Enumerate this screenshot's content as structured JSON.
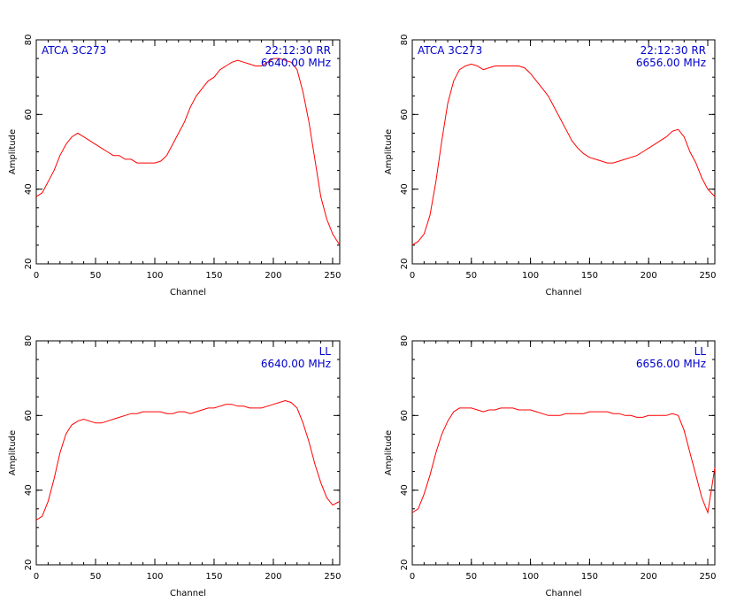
{
  "chart_data": [
    {
      "type": "line",
      "xlabel": "Channel",
      "ylabel": "Amplitude",
      "xlim": [
        0,
        256
      ],
      "ylim": [
        20,
        80
      ],
      "xticks": [
        0,
        50,
        100,
        150,
        200,
        250
      ],
      "yticks": [
        20,
        40,
        60,
        80
      ],
      "annotations": {
        "left": "ATCA 3C273",
        "right_line1": "22:12:30  RR",
        "right_line2": "6640.00  MHz"
      },
      "series": [
        {
          "color": "#ff0000",
          "x": [
            0,
            5,
            10,
            15,
            20,
            25,
            30,
            35,
            40,
            45,
            50,
            55,
            60,
            65,
            70,
            75,
            80,
            85,
            90,
            95,
            100,
            105,
            110,
            115,
            120,
            125,
            130,
            135,
            140,
            145,
            150,
            155,
            160,
            165,
            170,
            175,
            180,
            185,
            190,
            195,
            200,
            205,
            210,
            215,
            220,
            225,
            230,
            235,
            240,
            245,
            250,
            256
          ],
          "y": [
            38,
            39,
            42,
            45,
            49,
            52,
            54,
            55,
            54,
            53,
            52,
            51,
            50,
            49,
            49,
            48,
            48,
            47,
            47,
            47,
            47,
            47.5,
            49,
            52,
            55,
            58,
            62,
            65,
            67,
            69,
            70,
            72,
            73,
            74,
            74.5,
            74,
            73.5,
            73,
            73,
            74,
            75,
            75,
            74.5,
            74,
            72,
            66,
            58,
            48,
            38,
            32,
            28,
            25
          ]
        }
      ]
    },
    {
      "type": "line",
      "xlabel": "Channel",
      "ylabel": "Amplitude",
      "xlim": [
        0,
        256
      ],
      "ylim": [
        20,
        80
      ],
      "xticks": [
        0,
        50,
        100,
        150,
        200,
        250
      ],
      "yticks": [
        20,
        40,
        60,
        80
      ],
      "annotations": {
        "left": "ATCA 3C273",
        "right_line1": "22:12:30  RR",
        "right_line2": "6656.00  MHz"
      },
      "series": [
        {
          "color": "#ff0000",
          "x": [
            0,
            5,
            10,
            15,
            20,
            25,
            30,
            35,
            40,
            45,
            50,
            55,
            60,
            65,
            70,
            75,
            80,
            85,
            90,
            95,
            100,
            105,
            110,
            115,
            120,
            125,
            130,
            135,
            140,
            145,
            150,
            155,
            160,
            165,
            170,
            175,
            180,
            185,
            190,
            195,
            200,
            205,
            210,
            215,
            220,
            225,
            230,
            235,
            240,
            245,
            250,
            256
          ],
          "y": [
            25,
            26,
            28,
            33,
            42,
            53,
            63,
            69,
            72,
            73,
            73.5,
            73,
            72,
            72.5,
            73,
            73,
            73,
            73,
            73,
            72.5,
            71,
            69,
            67,
            65,
            62,
            59,
            56,
            53,
            51,
            49.5,
            48.5,
            48,
            47.5,
            47,
            47,
            47.5,
            48,
            48.5,
            49,
            50,
            51,
            52,
            53,
            54,
            55.5,
            56,
            54,
            50,
            47,
            43,
            40,
            38
          ]
        }
      ]
    },
    {
      "type": "line",
      "xlabel": "Channel",
      "ylabel": "Amplitude",
      "xlim": [
        0,
        256
      ],
      "ylim": [
        20,
        80
      ],
      "xticks": [
        0,
        50,
        100,
        150,
        200,
        250
      ],
      "yticks": [
        20,
        40,
        60,
        80
      ],
      "annotations": {
        "left": "",
        "right_line1": "LL",
        "right_line2": "6640.00  MHz"
      },
      "series": [
        {
          "color": "#ff0000",
          "x": [
            0,
            5,
            10,
            15,
            20,
            25,
            30,
            35,
            40,
            45,
            50,
            55,
            60,
            65,
            70,
            75,
            80,
            85,
            90,
            95,
            100,
            105,
            110,
            115,
            120,
            125,
            130,
            135,
            140,
            145,
            150,
            155,
            160,
            165,
            170,
            175,
            180,
            185,
            190,
            195,
            200,
            205,
            210,
            215,
            220,
            225,
            230,
            235,
            240,
            245,
            250,
            256
          ],
          "y": [
            32,
            33,
            37,
            43,
            50,
            55,
            57.5,
            58.5,
            59,
            58.5,
            58,
            58,
            58.5,
            59,
            59.5,
            60,
            60.5,
            60.5,
            61,
            61,
            61,
            61,
            60.5,
            60.5,
            61,
            61,
            60.5,
            61,
            61.5,
            62,
            62,
            62.5,
            63,
            63,
            62.5,
            62.5,
            62,
            62,
            62,
            62.5,
            63,
            63.5,
            64,
            63.5,
            62,
            58,
            53,
            47,
            42,
            38,
            36,
            37
          ]
        }
      ]
    },
    {
      "type": "line",
      "xlabel": "Channel",
      "ylabel": "Amplitude",
      "xlim": [
        0,
        256
      ],
      "ylim": [
        20,
        80
      ],
      "xticks": [
        0,
        50,
        100,
        150,
        200,
        250
      ],
      "yticks": [
        20,
        40,
        60,
        80
      ],
      "annotations": {
        "left": "",
        "right_line1": "LL",
        "right_line2": "6656.00  MHz"
      },
      "series": [
        {
          "color": "#ff0000",
          "x": [
            0,
            5,
            10,
            15,
            20,
            25,
            30,
            35,
            40,
            45,
            50,
            55,
            60,
            65,
            70,
            75,
            80,
            85,
            90,
            95,
            100,
            105,
            110,
            115,
            120,
            125,
            130,
            135,
            140,
            145,
            150,
            155,
            160,
            165,
            170,
            175,
            180,
            185,
            190,
            195,
            200,
            205,
            210,
            215,
            220,
            225,
            230,
            235,
            240,
            245,
            250,
            256
          ],
          "y": [
            34,
            35,
            39,
            44,
            50,
            55,
            58.5,
            61,
            62,
            62,
            62,
            61.5,
            61,
            61.5,
            61.5,
            62,
            62,
            62,
            61.5,
            61.5,
            61.5,
            61,
            60.5,
            60,
            60,
            60,
            60.5,
            60.5,
            60.5,
            60.5,
            61,
            61,
            61,
            61,
            60.5,
            60.5,
            60,
            60,
            59.5,
            59.5,
            60,
            60,
            60,
            60,
            60.5,
            60,
            56,
            50,
            44,
            38,
            34,
            46
          ]
        }
      ]
    }
  ]
}
